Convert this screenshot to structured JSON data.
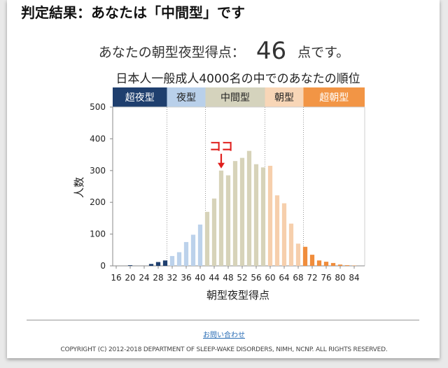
{
  "heading": "判定結果：あなたは「中間型」です",
  "score_line": {
    "prefix": "あなたの朝型夜型得点：",
    "score": "46",
    "suffix": "点です。"
  },
  "contact_link": "お問い合わせ",
  "copyright": "COPYRIGHT (C) 2012-2018 DEPARTMENT OF SLEEP-WAKE DISORDERS, NIMH, NCNP. ALL RIGHTS RESERVED.",
  "chart_data": {
    "type": "bar",
    "title": "日本人一般成人4000名の中でのあなたの順位",
    "xlabel": "朝型夜型得点",
    "ylabel": "人数",
    "ylim": [
      0,
      500
    ],
    "yticks": [
      0,
      100,
      200,
      300,
      400,
      500
    ],
    "xlim": [
      15,
      87
    ],
    "xticks": [
      16,
      20,
      24,
      28,
      32,
      36,
      40,
      44,
      48,
      52,
      56,
      60,
      64,
      68,
      72,
      76,
      80,
      84
    ],
    "grid": false,
    "annotation": {
      "label": "ココ",
      "x": 46
    },
    "categories": [
      {
        "label": "超夜型",
        "from": 15,
        "to": 30.5,
        "color": "#1f3f6e",
        "bar_color": "#1f3f6e",
        "text_color": "#ffffff"
      },
      {
        "label": "夜型",
        "from": 30.5,
        "to": 41.5,
        "color": "#b9d0ea",
        "bar_color": "#bcd2eb",
        "text_color": "#222222"
      },
      {
        "label": "中間型",
        "from": 41.5,
        "to": 58.5,
        "color": "#d5d3bd",
        "bar_color": "#d7d3b9",
        "text_color": "#222222"
      },
      {
        "label": "朝型",
        "from": 58.5,
        "to": 69.5,
        "color": "#f8d6b7",
        "bar_color": "#f6cfac",
        "text_color": "#222222"
      },
      {
        "label": "超朝型",
        "from": 69.5,
        "to": 87,
        "color": "#f29545",
        "bar_color": "#f08d3c",
        "text_color": "#ffffff"
      }
    ],
    "series": [
      {
        "x": [
          16,
          17,
          18,
          19,
          20,
          21,
          22,
          23,
          24,
          25,
          26,
          27,
          28,
          29,
          30,
          31,
          32,
          33,
          34,
          35,
          36,
          37,
          38,
          39,
          40,
          41,
          42,
          43,
          44,
          45,
          46,
          47,
          48,
          49,
          50,
          51,
          52,
          53,
          54,
          55,
          56,
          57,
          58,
          59,
          60,
          61,
          62,
          63,
          64,
          65,
          66,
          67,
          68,
          69,
          70,
          71,
          72,
          73,
          74,
          75,
          76,
          77,
          78,
          79,
          80,
          81,
          82,
          83,
          84,
          85,
          86
        ],
        "y": [
          0,
          0,
          0,
          0,
          2,
          0,
          0,
          0,
          0,
          0,
          6,
          0,
          12,
          0,
          17,
          0,
          31,
          0,
          43,
          0,
          75,
          0,
          98,
          0,
          130,
          0,
          170,
          0,
          212,
          0,
          300,
          0,
          285,
          0,
          330,
          0,
          340,
          0,
          362,
          0,
          320,
          0,
          310,
          0,
          315,
          0,
          222,
          0,
          197,
          0,
          133,
          0,
          70,
          0,
          60,
          0,
          35,
          0,
          17,
          0,
          13,
          0,
          9,
          0,
          4,
          0,
          2,
          0,
          1,
          0,
          0
        ]
      }
    ]
  }
}
